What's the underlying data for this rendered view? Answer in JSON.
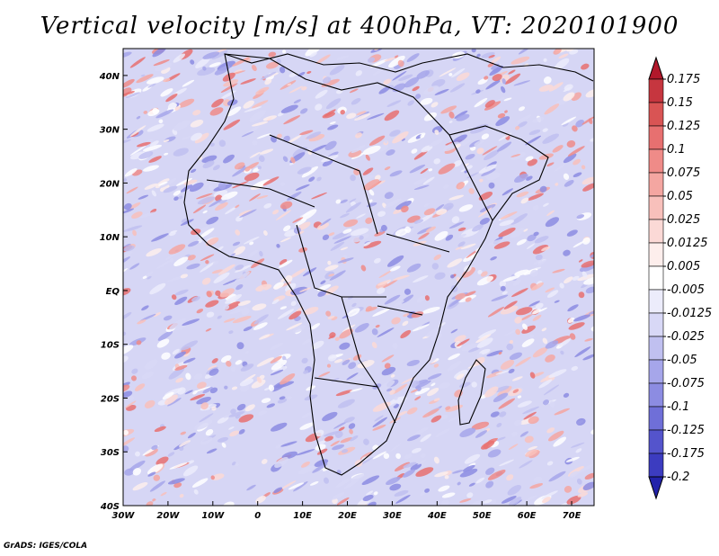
{
  "title": "Vertical velocity [m/s] at 400hPa, VT: 2020101900",
  "credit": "GrADS: IGES/COLA",
  "map": {
    "lon_range": [
      -30,
      75
    ],
    "lat_range": [
      -40,
      45
    ],
    "x_ticks": [
      "30W",
      "20W",
      "10W",
      "0",
      "10E",
      "20E",
      "30E",
      "40E",
      "50E",
      "60E",
      "70E"
    ],
    "x_tick_values": [
      -30,
      -20,
      -10,
      0,
      10,
      20,
      30,
      40,
      50,
      60,
      70
    ],
    "y_ticks": [
      "40N",
      "30N",
      "20N",
      "10N",
      "EQ",
      "10S",
      "20S",
      "30S",
      "40S"
    ],
    "y_tick_values": [
      40,
      30,
      20,
      10,
      0,
      -10,
      -20,
      -30,
      -40
    ]
  },
  "colorbar": {
    "labels": [
      "0.175",
      "0.15",
      "0.125",
      "0.1",
      "0.075",
      "0.05",
      "0.025",
      "0.0125",
      "0.005",
      "-0.005",
      "-0.0125",
      "-0.025",
      "-0.05",
      "-0.075",
      "-0.1",
      "-0.125",
      "-0.175",
      "-0.2"
    ],
    "colors": [
      "#b2182b",
      "#c6363f",
      "#d95454",
      "#e77070",
      "#ef8b88",
      "#f4a6a1",
      "#f8c0bb",
      "#fbd9d6",
      "#fdeeec",
      "#ffffff",
      "#ececfb",
      "#d8d8f6",
      "#c0c0f0",
      "#a6a6ea",
      "#8c8ce2",
      "#6f6fd8",
      "#5454cc",
      "#3c3cc0",
      "#2222aa"
    ]
  }
}
